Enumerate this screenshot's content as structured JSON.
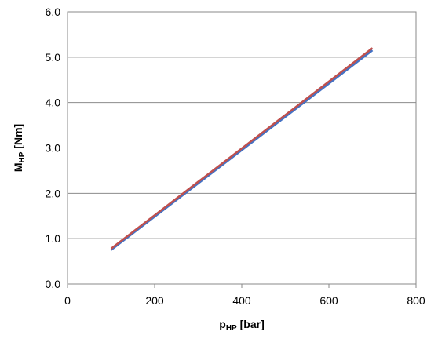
{
  "chart_data": {
    "type": "line",
    "xlabel": {
      "main": "p",
      "sub": "HP",
      "unit": " [bar]"
    },
    "ylabel": {
      "main": "M",
      "sub": "HP",
      "unit": " [Nm]"
    },
    "xlim": [
      0,
      800
    ],
    "ylim": [
      0,
      6
    ],
    "xticks": [
      "0",
      "200",
      "400",
      "600",
      "800"
    ],
    "yticks": [
      "0.0",
      "1.0",
      "2.0",
      "3.0",
      "4.0",
      "5.0",
      "6.0"
    ],
    "grid": "horizontal",
    "legend": "none",
    "series": [
      {
        "color": "#4472C4",
        "x": [
          100,
          700
        ],
        "y": [
          0.75,
          5.15
        ]
      },
      {
        "color": "#C0504D",
        "x": [
          100,
          700
        ],
        "y": [
          0.78,
          5.2
        ]
      }
    ]
  }
}
